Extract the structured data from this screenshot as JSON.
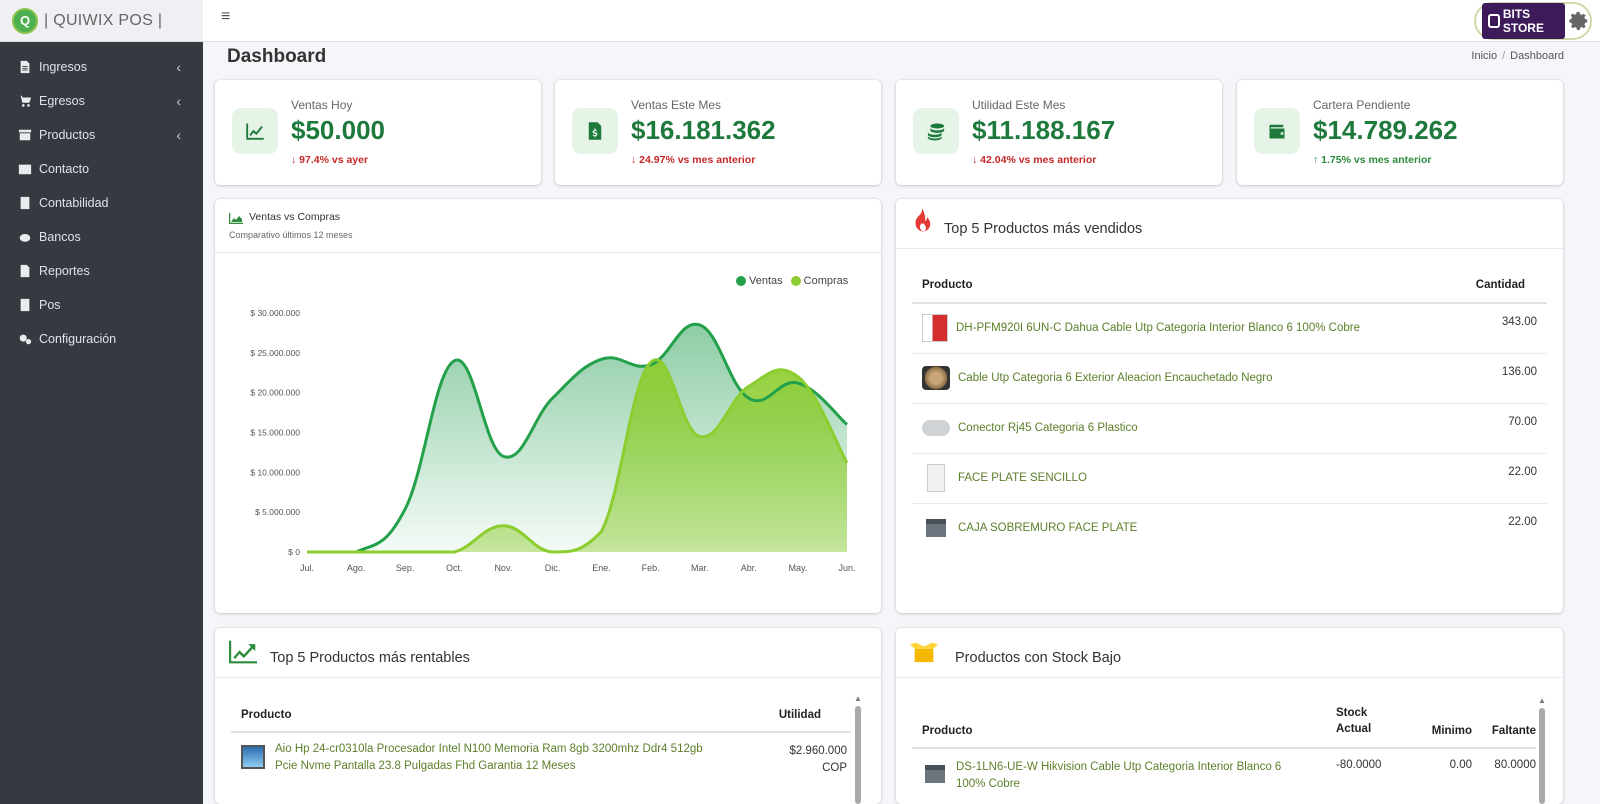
{
  "brand": {
    "name": "| QUIWIX POS |",
    "logo_letter": "Q"
  },
  "store": {
    "name": "BITS STORE"
  },
  "sidebar": {
    "items": [
      {
        "label": "Ingresos",
        "icon": "file-icon",
        "has_children": true
      },
      {
        "label": "Egresos",
        "icon": "cart-icon",
        "has_children": true
      },
      {
        "label": "Productos",
        "icon": "archive-icon",
        "has_children": true
      },
      {
        "label": "Contacto",
        "icon": "id-card-icon",
        "has_children": false
      },
      {
        "label": "Contabilidad",
        "icon": "calculator-icon",
        "has_children": false
      },
      {
        "label": "Bancos",
        "icon": "piggy-bank-icon",
        "has_children": false
      },
      {
        "label": "Reportes",
        "icon": "report-icon",
        "has_children": false
      },
      {
        "label": "Pos",
        "icon": "receipt-icon",
        "has_children": false
      },
      {
        "label": "Configuración",
        "icon": "cogs-icon",
        "has_children": false
      }
    ]
  },
  "header": {
    "menu_icon": "≡",
    "title": "Dashboard",
    "breadcrumb": [
      "Inicio",
      "Dashboard"
    ],
    "breadcrumb_sep": "/"
  },
  "kpis": [
    {
      "label": "Ventas Hoy",
      "value": "$50.000",
      "delta": "↓ 97.4% vs ayer",
      "trend": "down",
      "icon": "chart-line-icon"
    },
    {
      "label": "Ventas Este Mes",
      "value": "$16.181.362",
      "delta": "↓ 24.97% vs mes anterior",
      "trend": "down",
      "icon": "invoice-dollar-icon"
    },
    {
      "label": "Utilidad Este Mes",
      "value": "$11.188.167",
      "delta": "↓ 42.04% vs mes anterior",
      "trend": "down",
      "icon": "coins-icon"
    },
    {
      "label": "Cartera Pendiente",
      "value": "$14.789.262",
      "delta": "↑ 1.75% vs mes anterior",
      "trend": "up",
      "icon": "wallet-icon"
    }
  ],
  "chart_card": {
    "title": "Ventas vs Compras",
    "subtitle": "Comparativo últimos 12 meses"
  },
  "chart_data": {
    "type": "area",
    "categories": [
      "Jul.",
      "Ago.",
      "Sep.",
      "Oct.",
      "Nov.",
      "Dic.",
      "Ene.",
      "Feb.",
      "Mar.",
      "Abr.",
      "May.",
      "Jun."
    ],
    "series": [
      {
        "name": "Ventas",
        "values": [
          0,
          0,
          5400000,
          24000000,
          12000000,
          19300000,
          24200000,
          23500000,
          28500000,
          19300000,
          21200000,
          16000000
        ],
        "color": "#23a04a"
      },
      {
        "name": "Compras",
        "values": [
          0,
          0,
          0,
          0,
          3300000,
          0,
          2600000,
          23800000,
          14500000,
          20800000,
          22000000,
          11200000
        ],
        "color": "#8ccd2f"
      }
    ],
    "yticks": [
      "$ 0",
      "$ 5.000.000",
      "$ 10.000.000",
      "$ 15.000.000",
      "$ 20.000.000",
      "$ 25.000.000",
      "$ 30.000.000"
    ],
    "ylim": [
      0,
      30000000
    ],
    "legend_position": "top-right",
    "grid": false
  },
  "top_sold": {
    "title": "Top 5 Productos más vendidos",
    "col_product": "Producto",
    "col_qty": "Cantidad",
    "rows": [
      {
        "name": "DH-PFM920I 6UN-C Dahua Cable Utp Categoria Interior Blanco 6 100% Cobre",
        "qty": "343.00"
      },
      {
        "name": "Cable Utp Categoria 6 Exterior Aleacion Encauchetado Negro",
        "qty": "136.00"
      },
      {
        "name": "Conector Rj45 Categoria 6 Plastico",
        "qty": "70.00"
      },
      {
        "name": "FACE PLATE SENCILLO",
        "qty": "22.00"
      },
      {
        "name": "CAJA SOBREMURO FACE PLATE",
        "qty": "22.00"
      }
    ]
  },
  "top_profit": {
    "title": "Top 5 Productos más rentables",
    "col_product": "Producto",
    "col_profit": "Utilidad",
    "rows": [
      {
        "name": "Aio Hp 24-cr0310la Procesador Intel N100 Memoria Ram 8gb 3200mhz Ddr4 512gb Pcie Nvme Pantalla 23.8 Pulgadas Fhd Garantia 12 Meses",
        "profit": "$2.960.000",
        "currency": "COP"
      }
    ]
  },
  "low_stock": {
    "title": "Productos con Stock Bajo",
    "col_product": "Producto",
    "col_stock_1": "Stock",
    "col_stock_2": "Actual",
    "col_min": "Minimo",
    "col_missing": "Faltante",
    "rows": [
      {
        "name": "DS-1LN6-UE-W Hikvision Cable Utp Categoria Interior Blanco 6 100% Cobre",
        "stock": "-80.0000",
        "min": "0.00",
        "missing": "80.0000"
      }
    ]
  }
}
